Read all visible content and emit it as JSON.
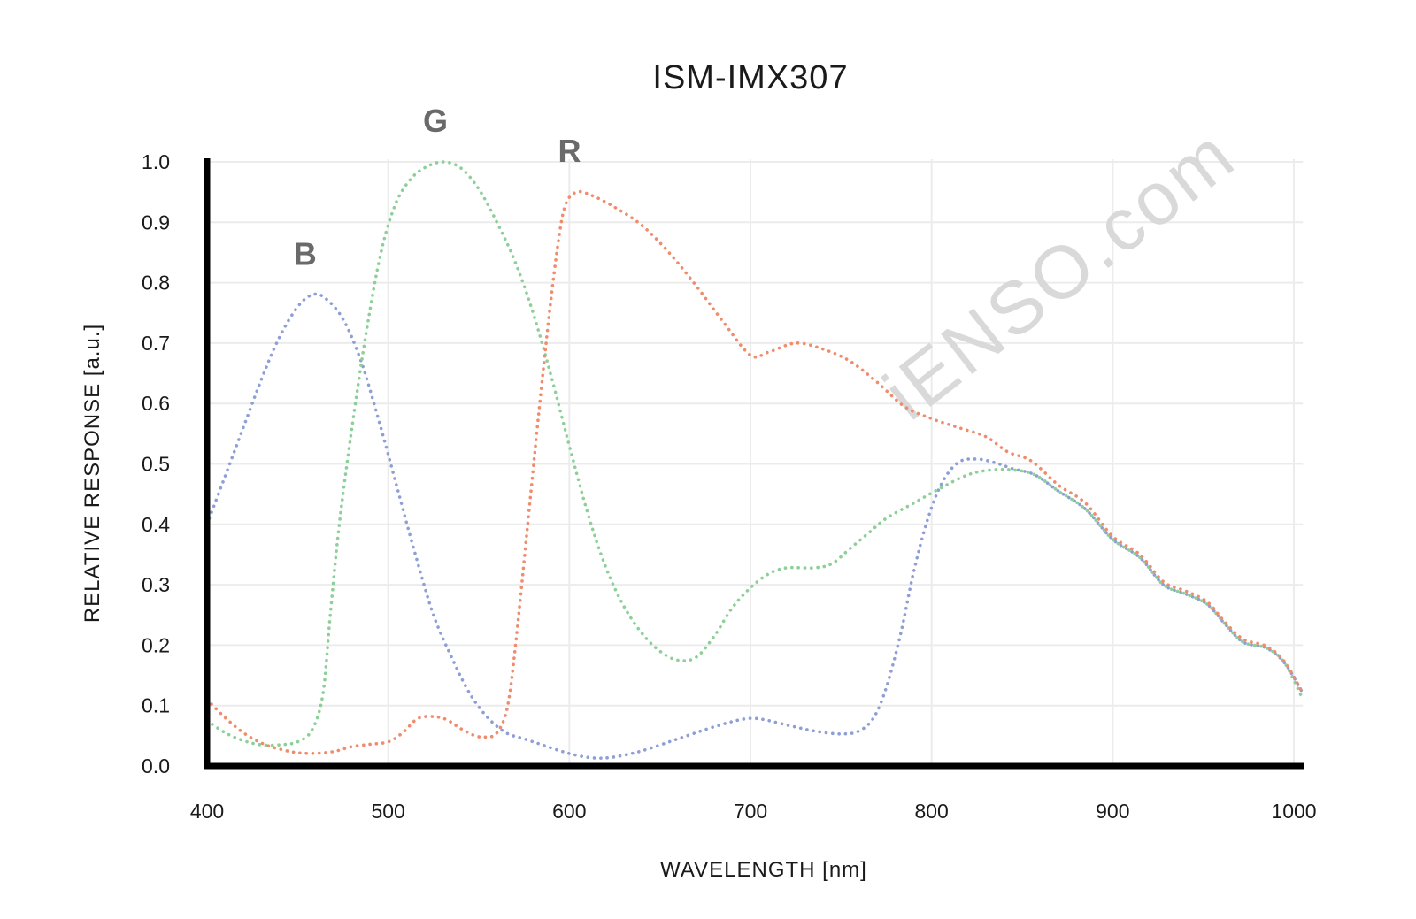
{
  "chart_data": {
    "type": "line",
    "title": "ISM-IMX307",
    "xlabel": "WAVELENGTH [nm]",
    "ylabel": "RELATIVE RESPONSE [a.u.]",
    "xlim": [
      400,
      1010
    ],
    "ylim": [
      0,
      1.0
    ],
    "x_ticks": [
      "400",
      "500",
      "600",
      "700",
      "800",
      "900",
      "1000"
    ],
    "y_ticks": [
      "0.0",
      "0.1",
      "0.2",
      "0.3",
      "0.4",
      "0.5",
      "0.6",
      "0.7",
      "0.8",
      "0.9",
      "1.0"
    ],
    "grid": true,
    "watermark": "iENSO.com",
    "series": [
      {
        "name": "B",
        "color": "#8e9ed6",
        "points": [
          [
            400,
            0.4
          ],
          [
            410,
            0.48
          ],
          [
            420,
            0.56
          ],
          [
            430,
            0.64
          ],
          [
            440,
            0.71
          ],
          [
            450,
            0.76
          ],
          [
            458,
            0.78
          ],
          [
            465,
            0.775
          ],
          [
            475,
            0.74
          ],
          [
            485,
            0.67
          ],
          [
            495,
            0.57
          ],
          [
            505,
            0.46
          ],
          [
            515,
            0.35
          ],
          [
            525,
            0.25
          ],
          [
            535,
            0.18
          ],
          [
            545,
            0.12
          ],
          [
            555,
            0.08
          ],
          [
            565,
            0.055
          ],
          [
            575,
            0.045
          ],
          [
            585,
            0.035
          ],
          [
            595,
            0.025
          ],
          [
            605,
            0.017
          ],
          [
            615,
            0.013
          ],
          [
            625,
            0.015
          ],
          [
            640,
            0.025
          ],
          [
            660,
            0.045
          ],
          [
            680,
            0.065
          ],
          [
            695,
            0.077
          ],
          [
            705,
            0.078
          ],
          [
            720,
            0.068
          ],
          [
            735,
            0.058
          ],
          [
            750,
            0.053
          ],
          [
            760,
            0.058
          ],
          [
            768,
            0.08
          ],
          [
            775,
            0.13
          ],
          [
            783,
            0.22
          ],
          [
            790,
            0.32
          ],
          [
            798,
            0.41
          ],
          [
            806,
            0.47
          ],
          [
            815,
            0.503
          ],
          [
            825,
            0.508
          ],
          [
            835,
            0.502
          ],
          [
            845,
            0.492
          ],
          [
            857,
            0.482
          ],
          [
            870,
            0.455
          ],
          [
            885,
            0.425
          ],
          [
            900,
            0.375
          ],
          [
            915,
            0.345
          ],
          [
            928,
            0.3
          ],
          [
            940,
            0.285
          ],
          [
            952,
            0.268
          ],
          [
            962,
            0.235
          ],
          [
            972,
            0.205
          ],
          [
            985,
            0.195
          ],
          [
            995,
            0.17
          ],
          [
            1005,
            0.12
          ]
        ]
      },
      {
        "name": "G",
        "color": "#8ccf98",
        "points": [
          [
            400,
            0.075
          ],
          [
            410,
            0.055
          ],
          [
            420,
            0.042
          ],
          [
            430,
            0.035
          ],
          [
            440,
            0.035
          ],
          [
            450,
            0.04
          ],
          [
            458,
            0.06
          ],
          [
            464,
            0.12
          ],
          [
            468,
            0.25
          ],
          [
            473,
            0.4
          ],
          [
            480,
            0.56
          ],
          [
            488,
            0.72
          ],
          [
            496,
            0.85
          ],
          [
            504,
            0.93
          ],
          [
            512,
            0.97
          ],
          [
            520,
            0.99
          ],
          [
            530,
            1.0
          ],
          [
            540,
            0.99
          ],
          [
            550,
            0.955
          ],
          [
            560,
            0.9
          ],
          [
            570,
            0.835
          ],
          [
            580,
            0.75
          ],
          [
            590,
            0.645
          ],
          [
            600,
            0.53
          ],
          [
            610,
            0.42
          ],
          [
            620,
            0.33
          ],
          [
            630,
            0.265
          ],
          [
            640,
            0.22
          ],
          [
            650,
            0.19
          ],
          [
            660,
            0.175
          ],
          [
            670,
            0.18
          ],
          [
            680,
            0.215
          ],
          [
            690,
            0.262
          ],
          [
            700,
            0.295
          ],
          [
            710,
            0.318
          ],
          [
            720,
            0.328
          ],
          [
            735,
            0.328
          ],
          [
            745,
            0.335
          ],
          [
            755,
            0.36
          ],
          [
            765,
            0.385
          ],
          [
            775,
            0.41
          ],
          [
            790,
            0.435
          ],
          [
            805,
            0.46
          ],
          [
            820,
            0.482
          ],
          [
            833,
            0.49
          ],
          [
            845,
            0.49
          ],
          [
            857,
            0.482
          ],
          [
            870,
            0.455
          ],
          [
            885,
            0.425
          ],
          [
            900,
            0.375
          ],
          [
            915,
            0.345
          ],
          [
            928,
            0.3
          ],
          [
            940,
            0.285
          ],
          [
            952,
            0.268
          ],
          [
            962,
            0.235
          ],
          [
            972,
            0.205
          ],
          [
            985,
            0.195
          ],
          [
            995,
            0.17
          ],
          [
            1005,
            0.11
          ]
        ]
      },
      {
        "name": "R",
        "color": "#ef8c6c",
        "points": [
          [
            400,
            0.11
          ],
          [
            410,
            0.08
          ],
          [
            420,
            0.055
          ],
          [
            430,
            0.038
          ],
          [
            440,
            0.028
          ],
          [
            450,
            0.022
          ],
          [
            460,
            0.021
          ],
          [
            470,
            0.024
          ],
          [
            480,
            0.032
          ],
          [
            490,
            0.036
          ],
          [
            500,
            0.04
          ],
          [
            508,
            0.055
          ],
          [
            516,
            0.078
          ],
          [
            524,
            0.082
          ],
          [
            532,
            0.077
          ],
          [
            540,
            0.062
          ],
          [
            548,
            0.05
          ],
          [
            554,
            0.048
          ],
          [
            560,
            0.055
          ],
          [
            566,
            0.1
          ],
          [
            571,
            0.22
          ],
          [
            577,
            0.4
          ],
          [
            583,
            0.58
          ],
          [
            589,
            0.75
          ],
          [
            594,
            0.87
          ],
          [
            598,
            0.93
          ],
          [
            604,
            0.95
          ],
          [
            612,
            0.945
          ],
          [
            625,
            0.925
          ],
          [
            640,
            0.895
          ],
          [
            655,
            0.85
          ],
          [
            670,
            0.795
          ],
          [
            685,
            0.735
          ],
          [
            700,
            0.68
          ],
          [
            710,
            0.685
          ],
          [
            725,
            0.7
          ],
          [
            740,
            0.69
          ],
          [
            755,
            0.67
          ],
          [
            770,
            0.635
          ],
          [
            785,
            0.595
          ],
          [
            800,
            0.575
          ],
          [
            815,
            0.56
          ],
          [
            830,
            0.545
          ],
          [
            842,
            0.52
          ],
          [
            855,
            0.505
          ],
          [
            870,
            0.465
          ],
          [
            885,
            0.435
          ],
          [
            900,
            0.38
          ],
          [
            915,
            0.35
          ],
          [
            928,
            0.305
          ],
          [
            940,
            0.29
          ],
          [
            952,
            0.272
          ],
          [
            962,
            0.238
          ],
          [
            972,
            0.21
          ],
          [
            985,
            0.198
          ],
          [
            995,
            0.172
          ],
          [
            1005,
            0.12
          ]
        ]
      }
    ]
  }
}
